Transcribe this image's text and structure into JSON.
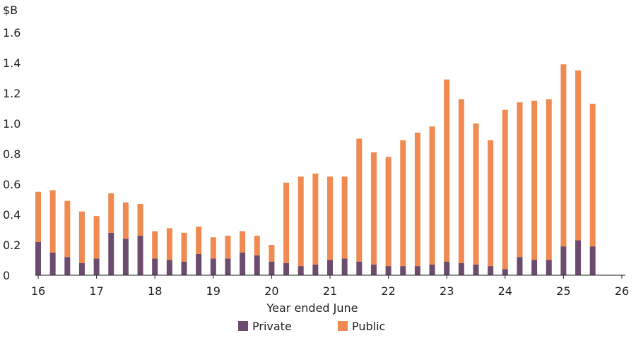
{
  "chart_data": {
    "type": "bar",
    "stacked": true,
    "title": "",
    "unit": "$B",
    "xlabel": "Year ended June",
    "ylabel": "",
    "ylim": [
      0,
      1.6
    ],
    "yticks": [
      "0",
      "0.2",
      "0.4",
      "0.6",
      "0.8",
      "1.0",
      "1.2",
      "1.4",
      "1.6"
    ],
    "xlim": [
      16,
      26
    ],
    "xticks": [
      "16",
      "17",
      "18",
      "19",
      "20",
      "21",
      "22",
      "23",
      "24",
      "25",
      "26"
    ],
    "grid": false,
    "legend_position": "bottom",
    "x": [
      16.0,
      16.25,
      16.5,
      16.75,
      17.0,
      17.25,
      17.5,
      17.75,
      18.0,
      18.25,
      18.5,
      18.75,
      19.0,
      19.25,
      19.5,
      19.75,
      20.0,
      20.25,
      20.5,
      20.75,
      21.0,
      21.25,
      21.5,
      21.75,
      22.0,
      22.25,
      22.5,
      22.75,
      23.0,
      23.25,
      23.5,
      23.75,
      24.0,
      24.25,
      24.5,
      24.75,
      25.0,
      25.25,
      25.5
    ],
    "series": [
      {
        "name": "Private",
        "color": "#6b4c6e",
        "values": [
          0.22,
          0.15,
          0.12,
          0.08,
          0.11,
          0.28,
          0.24,
          0.26,
          0.11,
          0.1,
          0.09,
          0.14,
          0.11,
          0.11,
          0.15,
          0.13,
          0.09,
          0.08,
          0.06,
          0.07,
          0.1,
          0.11,
          0.09,
          0.07,
          0.06,
          0.06,
          0.06,
          0.07,
          0.09,
          0.08,
          0.07,
          0.06,
          0.04,
          0.12,
          0.1,
          0.1,
          0.19,
          0.23,
          0.19
        ]
      },
      {
        "name": "Public",
        "color": "#f08a50",
        "values": [
          0.33,
          0.41,
          0.37,
          0.34,
          0.28,
          0.26,
          0.24,
          0.21,
          0.18,
          0.21,
          0.19,
          0.18,
          0.14,
          0.15,
          0.14,
          0.13,
          0.11,
          0.53,
          0.59,
          0.6,
          0.55,
          0.54,
          0.81,
          0.74,
          0.72,
          0.83,
          0.88,
          0.91,
          1.2,
          1.08,
          0.93,
          0.83,
          1.05,
          1.02,
          1.05,
          1.06,
          1.2,
          1.12,
          0.94
        ]
      }
    ]
  }
}
